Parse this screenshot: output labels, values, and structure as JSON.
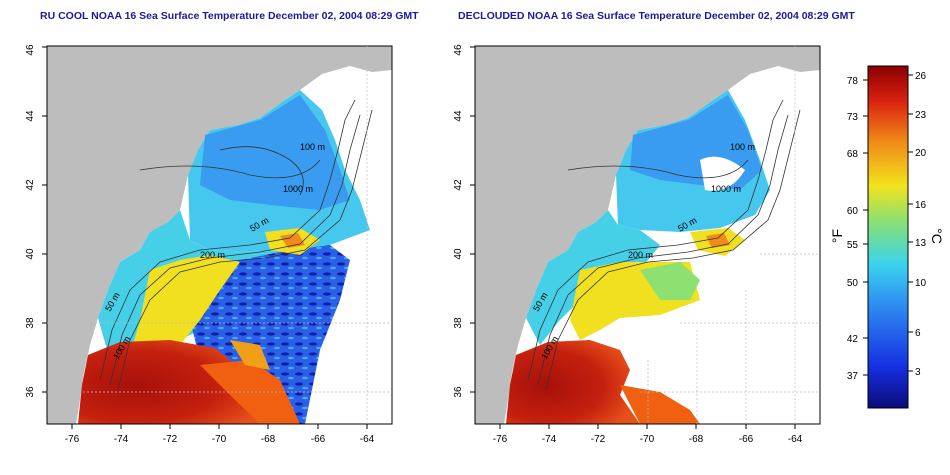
{
  "panels": [
    {
      "title": "RU COOL NOAA 16 Sea Surface Temperature December 02, 2004 08:29 GMT",
      "x_ticks": [
        "-76",
        "-74",
        "-72",
        "-70",
        "-68",
        "-66",
        "-64"
      ],
      "y_ticks": [
        "36",
        "38",
        "40",
        "42",
        "44",
        "46"
      ],
      "contour_labels": [
        "50 m",
        "100 m",
        "200 m",
        "1000 m",
        "50 m",
        "100 m"
      ]
    },
    {
      "title": "DECLOUDED NOAA 16 Sea Surface Temperature December 02, 2004 08:29 GMT",
      "x_ticks": [
        "-76",
        "-74",
        "-72",
        "-70",
        "-68",
        "-66",
        "-64"
      ],
      "y_ticks": [
        "36",
        "38",
        "40",
        "42",
        "44",
        "46"
      ],
      "contour_labels": [
        "50 m",
        "100 m",
        "200 m",
        "1000 m",
        "50 m",
        "100 m"
      ]
    }
  ],
  "colorbar": {
    "fahrenheit_unit": "°F",
    "celsius_unit": "°C",
    "fahrenheit_ticks": [
      "78",
      "73",
      "68",
      "60",
      "55",
      "50",
      "42",
      "37"
    ],
    "celsius_ticks": [
      "26",
      "23",
      "20",
      "16",
      "13",
      "10",
      "6",
      "3"
    ]
  },
  "colors": {
    "land": "#bdbdbd",
    "title": "#1a1a9c",
    "cold": "#1a3ad8",
    "cool": "#3fa8f0",
    "mid": "#46d0e8",
    "mild": "#f0e020",
    "warm": "#e8501a",
    "hot": "#b0140c"
  }
}
